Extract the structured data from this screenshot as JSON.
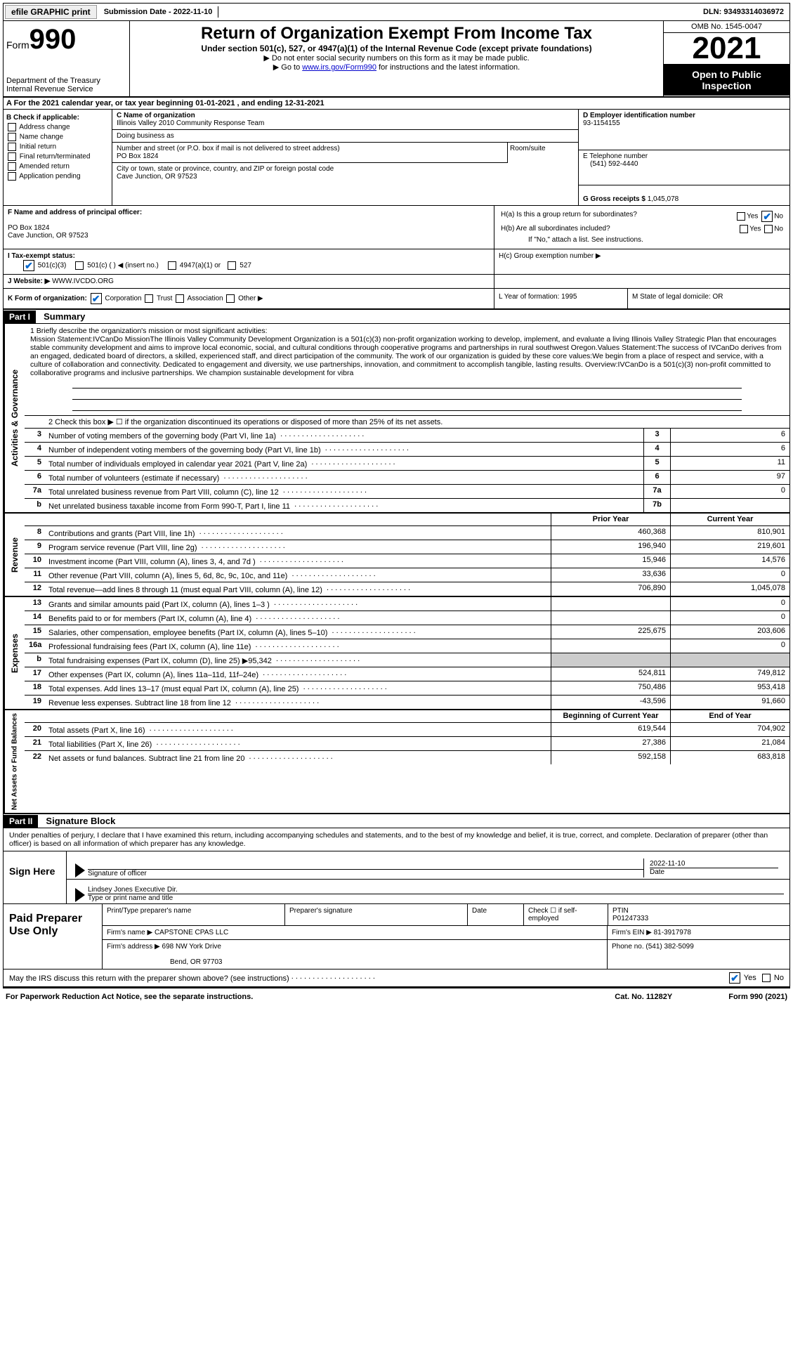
{
  "topbar": {
    "efile": "efile GRAPHIC print",
    "submission": "Submission Date - 2022-11-10",
    "dln": "DLN: 93493314036972"
  },
  "header": {
    "form_label": "Form",
    "form_num": "990",
    "dept": "Department of the Treasury Internal Revenue Service",
    "title": "Return of Organization Exempt From Income Tax",
    "subtitle": "Under section 501(c), 527, or 4947(a)(1) of the Internal Revenue Code (except private foundations)",
    "line1": "▶ Do not enter social security numbers on this form as it may be made public.",
    "line2_pre": "▶ Go to ",
    "line2_link": "www.irs.gov/Form990",
    "line2_post": " for instructions and the latest information.",
    "omb": "OMB No. 1545-0047",
    "year": "2021",
    "open": "Open to Public Inspection"
  },
  "row_a": "A For the 2021 calendar year, or tax year beginning 01-01-2021   , and ending 12-31-2021",
  "col_b": {
    "title": "B Check if applicable:",
    "items": [
      "Address change",
      "Name change",
      "Initial return",
      "Final return/terminated",
      "Amended return",
      "Application pending"
    ]
  },
  "col_c": {
    "name_label": "C Name of organization",
    "name": "Illinois Valley 2010 Community Response Team",
    "dba_label": "Doing business as",
    "addr_label": "Number and street (or P.O. box if mail is not delivered to street address)",
    "addr": "PO Box 1824",
    "suite_label": "Room/suite",
    "city_label": "City or town, state or province, country, and ZIP or foreign postal code",
    "city": "Cave Junction, OR  97523"
  },
  "col_d": {
    "ein_label": "D Employer identification number",
    "ein": "93-1154155",
    "phone_label": "E Telephone number",
    "phone": "(541) 592-4440",
    "gross_label": "G Gross receipts $",
    "gross": "1,045,078"
  },
  "col_f": {
    "label": "F  Name and address of principal officer:",
    "line1": "PO Box 1824",
    "line2": "Cave Junction, OR  97523"
  },
  "col_h": {
    "ha": "H(a)  Is this a group return for subordinates?",
    "hb": "H(b)  Are all subordinates included?",
    "hb_note": "If \"No,\" attach a list. See instructions.",
    "hc": "H(c)  Group exemption number ▶"
  },
  "row_i": {
    "label": "I   Tax-exempt status:",
    "opts": [
      "501(c)(3)",
      "501(c) (  ) ◀ (insert no.)",
      "4947(a)(1) or",
      "527"
    ]
  },
  "row_j": {
    "label": "J  Website: ▶",
    "val": "WWW.IVCDO.ORG"
  },
  "row_k": "K Form of organization:",
  "k_opts": [
    "Corporation",
    "Trust",
    "Association",
    "Other ▶"
  ],
  "row_l": "L Year of formation: 1995",
  "row_m": "M State of legal domicile: OR",
  "part1": {
    "header": "Part I",
    "title": "Summary"
  },
  "mission": {
    "label": "1   Briefly describe the organization's mission or most significant activities:",
    "text": "Mission Statement:IVCanDo MissionThe Illinois Valley Community Development Organization is a 501(c)(3) non-profit organization working to develop, implement, and evaluate a living Illinois Valley Strategic Plan that encourages stable community development and aims to improve local economic, social, and cultural conditions through cooperative programs and partnerships in rural southwest Oregon.Values Statement:The success of IVCanDo derives from an engaged, dedicated board of directors, a skilled, experienced staff, and direct participation of the community. The work of our organization is guided by these core values:We begin from a place of respect and service, with a culture of collaboration and connectivity. Dedicated to engagement and diversity, we use partnerships, innovation, and commitment to accomplish tangible, lasting results. Overview:IVCanDo is a 501(c)(3) non-profit committed to collaborative programs and inclusive partnerships. We champion sustainable development for vibra"
  },
  "line2": "2   Check this box ▶ ☐  if the organization discontinued its operations or disposed of more than 25% of its net assets.",
  "sections": {
    "gov": {
      "label": "Activities & Governance",
      "rows": [
        {
          "n": "3",
          "d": "Number of voting members of the governing body (Part VI, line 1a)",
          "b": "3",
          "v": "6"
        },
        {
          "n": "4",
          "d": "Number of independent voting members of the governing body (Part VI, line 1b)",
          "b": "4",
          "v": "6"
        },
        {
          "n": "5",
          "d": "Total number of individuals employed in calendar year 2021 (Part V, line 2a)",
          "b": "5",
          "v": "11"
        },
        {
          "n": "6",
          "d": "Total number of volunteers (estimate if necessary)",
          "b": "6",
          "v": "97"
        },
        {
          "n": "7a",
          "d": "Total unrelated business revenue from Part VIII, column (C), line 12",
          "b": "7a",
          "v": "0"
        },
        {
          "n": "b",
          "d": "Net unrelated business taxable income from Form 990-T, Part I, line 11",
          "b": "7b",
          "v": ""
        }
      ]
    },
    "rev": {
      "label": "Revenue",
      "header": {
        "py": "Prior Year",
        "cy": "Current Year"
      },
      "rows": [
        {
          "n": "8",
          "d": "Contributions and grants (Part VIII, line 1h)",
          "py": "460,368",
          "cy": "810,901"
        },
        {
          "n": "9",
          "d": "Program service revenue (Part VIII, line 2g)",
          "py": "196,940",
          "cy": "219,601"
        },
        {
          "n": "10",
          "d": "Investment income (Part VIII, column (A), lines 3, 4, and 7d )",
          "py": "15,946",
          "cy": "14,576"
        },
        {
          "n": "11",
          "d": "Other revenue (Part VIII, column (A), lines 5, 6d, 8c, 9c, 10c, and 11e)",
          "py": "33,636",
          "cy": "0"
        },
        {
          "n": "12",
          "d": "Total revenue—add lines 8 through 11 (must equal Part VIII, column (A), line 12)",
          "py": "706,890",
          "cy": "1,045,078"
        }
      ]
    },
    "exp": {
      "label": "Expenses",
      "rows": [
        {
          "n": "13",
          "d": "Grants and similar amounts paid (Part IX, column (A), lines 1–3 )",
          "py": "",
          "cy": "0"
        },
        {
          "n": "14",
          "d": "Benefits paid to or for members (Part IX, column (A), line 4)",
          "py": "",
          "cy": "0"
        },
        {
          "n": "15",
          "d": "Salaries, other compensation, employee benefits (Part IX, column (A), lines 5–10)",
          "py": "225,675",
          "cy": "203,606"
        },
        {
          "n": "16a",
          "d": "Professional fundraising fees (Part IX, column (A), line 11e)",
          "py": "",
          "cy": "0"
        },
        {
          "n": "b",
          "d": "Total fundraising expenses (Part IX, column (D), line 25) ▶95,342",
          "py": "shade",
          "cy": "shade"
        },
        {
          "n": "17",
          "d": "Other expenses (Part IX, column (A), lines 11a–11d, 11f–24e)",
          "py": "524,811",
          "cy": "749,812"
        },
        {
          "n": "18",
          "d": "Total expenses. Add lines 13–17 (must equal Part IX, column (A), line 25)",
          "py": "750,486",
          "cy": "953,418"
        },
        {
          "n": "19",
          "d": "Revenue less expenses. Subtract line 18 from line 12",
          "py": "-43,596",
          "cy": "91,660"
        }
      ]
    },
    "net": {
      "label": "Net Assets or Fund Balances",
      "header": {
        "py": "Beginning of Current Year",
        "cy": "End of Year"
      },
      "rows": [
        {
          "n": "20",
          "d": "Total assets (Part X, line 16)",
          "py": "619,544",
          "cy": "704,902"
        },
        {
          "n": "21",
          "d": "Total liabilities (Part X, line 26)",
          "py": "27,386",
          "cy": "21,084"
        },
        {
          "n": "22",
          "d": "Net assets or fund balances. Subtract line 21 from line 20",
          "py": "592,158",
          "cy": "683,818"
        }
      ]
    }
  },
  "part2": {
    "header": "Part II",
    "title": "Signature Block",
    "text": "Under penalties of perjury, I declare that I have examined this return, including accompanying schedules and statements, and to the best of my knowledge and belief, it is true, correct, and complete. Declaration of preparer (other than officer) is based on all information of which preparer has any knowledge."
  },
  "sign": {
    "label": "Sign Here",
    "sig_label": "Signature of officer",
    "date_label": "Date",
    "date": "2022-11-10",
    "name": "Lindsey Jones  Executive Dir.",
    "name_label": "Type or print name and title"
  },
  "prep": {
    "label": "Paid Preparer Use Only",
    "h1": "Print/Type preparer's name",
    "h2": "Preparer's signature",
    "h3": "Date",
    "h4": "Check ☐ if self-employed",
    "h5_label": "PTIN",
    "h5": "P01247333",
    "firm_label": "Firm's name    ▶",
    "firm": "CAPSTONE CPAS LLC",
    "ein_label": "Firm's EIN ▶",
    "ein": "81-3917978",
    "addr_label": "Firm's address ▶",
    "addr1": "698 NW York Drive",
    "addr2": "Bend, OR  97703",
    "phone_label": "Phone no.",
    "phone": "(541) 382-5099"
  },
  "discuss": "May the IRS discuss this return with the preparer shown above? (see instructions)",
  "footer": {
    "left": "For Paperwork Reduction Act Notice, see the separate instructions.",
    "mid": "Cat. No. 11282Y",
    "right": "Form 990 (2021)"
  }
}
